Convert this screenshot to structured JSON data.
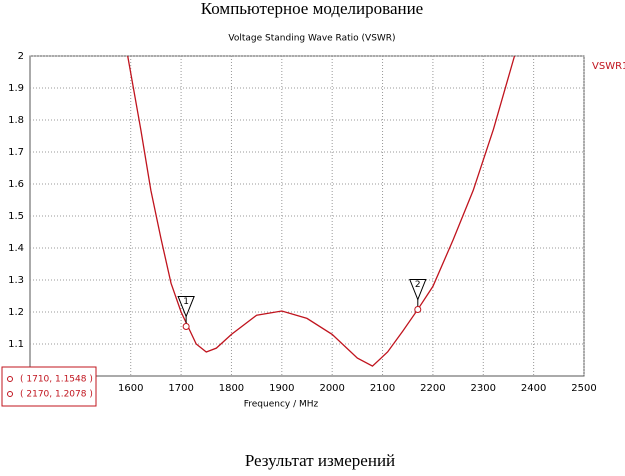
{
  "heading": "Компьютерное моделирование",
  "caption": "Результат измерений",
  "chart_data": {
    "type": "line",
    "title": "Voltage Standing Wave Ratio (VSWR)",
    "x_label": "Frequency / MHz",
    "x": [
      1594,
      1620,
      1640,
      1660,
      1680,
      1700,
      1730,
      1750,
      1770,
      1800,
      1850,
      1900,
      1950,
      2000,
      2050,
      2080,
      2110,
      2140,
      2170,
      2200,
      2240,
      2280,
      2320,
      2362
    ],
    "series": [
      {
        "name": "VSWR1",
        "color": "#c0141e",
        "values": [
          2.0,
          1.77,
          1.58,
          1.43,
          1.29,
          1.2,
          1.1,
          1.075,
          1.087,
          1.13,
          1.19,
          1.203,
          1.18,
          1.13,
          1.056,
          1.031,
          1.075,
          1.14,
          1.208,
          1.28,
          1.425,
          1.58,
          1.77,
          2.0
        ]
      }
    ],
    "xlim": [
      1400,
      2500
    ],
    "xticks": [
      1600,
      1700,
      1800,
      1900,
      2000,
      2100,
      2200,
      2300,
      2400,
      2500
    ],
    "ylim": [
      1.0,
      2.0
    ],
    "yticks": [
      1.1,
      1.2,
      1.3,
      1.4,
      1.5,
      1.6,
      1.7,
      1.8,
      1.9,
      2
    ],
    "grid": true,
    "markers": [
      {
        "label": "1",
        "x": 1710,
        "y": 1.1548,
        "text": "( 1710, 1.1548 )"
      },
      {
        "label": "2",
        "x": 2170,
        "y": 1.2078,
        "text": "( 2170, 1.2078 )"
      }
    ]
  }
}
